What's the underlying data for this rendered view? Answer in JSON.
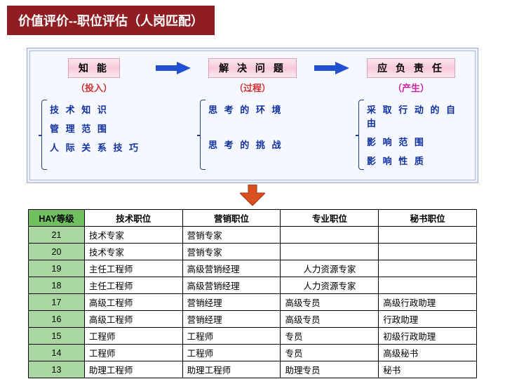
{
  "title": "价值评价--职位评估（人岗匹配）",
  "flow": {
    "heads": [
      {
        "label": "知 能",
        "sub": "（投入）",
        "subClass": ""
      },
      {
        "label": "解 决 问 题",
        "sub": "（过程）",
        "subClass": ""
      },
      {
        "label": "应 负 责 任",
        "sub": "（产生）",
        "subClass": "out"
      }
    ],
    "cols": [
      [
        "技 术 知 识",
        "管 理 范 围",
        "人 际 关 系 技 巧"
      ],
      [
        "思 考 的 环 境",
        "",
        "思 考 的 挑 战"
      ],
      [
        "采 取 行 动 的 自 由",
        "影 响 范 围",
        "影 响 性 质"
      ]
    ],
    "arrow_color": "#2050d0",
    "down_arrow_color": "#d85020"
  },
  "table": {
    "headers": [
      "HAY等级",
      "技术职位",
      "营销职位",
      "专业职位",
      "秘书职位"
    ],
    "rows": [
      [
        "21",
        "技术专家",
        "营销专家",
        "",
        ""
      ],
      [
        "20",
        "技术专家",
        "营销专家",
        "",
        ""
      ],
      [
        "19",
        "主任工程师",
        "高级营销经理",
        "人力资源专家",
        ""
      ],
      [
        "18",
        "主任工程师",
        "高级营销经理",
        "人力资源专家",
        ""
      ],
      [
        "17",
        "高级工程师",
        "营销经理",
        "高级专员",
        "高级行政助理"
      ],
      [
        "16",
        "高级工程师",
        "营销经理",
        "高级专员",
        "行政助理"
      ],
      [
        "15",
        "工程师",
        "工程师",
        "专员",
        "初级行政助理"
      ],
      [
        "14",
        "工程师",
        "工程师",
        "专员",
        "高级秘书"
      ],
      [
        "13",
        "助理工程师",
        "助理工程师",
        "助理专员",
        "秘书"
      ]
    ],
    "col_widths": [
      "80px",
      "140px",
      "140px",
      "140px",
      "140px"
    ]
  }
}
